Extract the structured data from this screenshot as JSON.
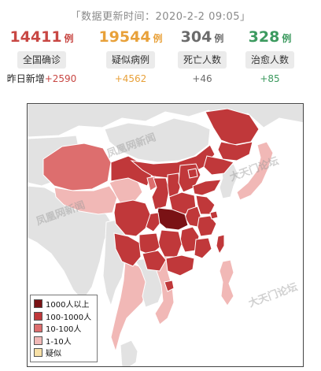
{
  "update": {
    "text": "「数据更新时间：2020-2-2 09:05」"
  },
  "stats": [
    {
      "number": "14411",
      "unit": "例",
      "label": "全国确诊",
      "delta_label": "昨日新增",
      "delta": "+2590",
      "color": "#c84743"
    },
    {
      "number": "19544",
      "unit": "例",
      "label": "疑似病例",
      "delta_label": "",
      "delta": "+4562",
      "color": "#e8a13a"
    },
    {
      "number": "304",
      "unit": "例",
      "label": "死亡人数",
      "delta_label": "",
      "delta": "+46",
      "color": "#6b6b6b"
    },
    {
      "number": "328",
      "unit": "例",
      "label": "治愈人数",
      "delta_label": "",
      "delta": "+85",
      "color": "#3c9a5f"
    }
  ],
  "legend": [
    {
      "label": "1000人以上",
      "color": "#7a1215"
    },
    {
      "label": "100-1000人",
      "color": "#c0383a"
    },
    {
      "label": "10-100人",
      "color": "#dd6e6e"
    },
    {
      "label": "1-10人",
      "color": "#f1b8b6"
    },
    {
      "label": "疑似",
      "color": "#f7e0a6"
    }
  ],
  "watermarks": {
    "brand_a": "大天门论坛",
    "brand_b": "凤凰网新闻"
  },
  "colors": {
    "level_1000_plus": "#7a1215",
    "level_100_1000": "#c0383a",
    "level_10_100": "#dd6e6e",
    "level_1_10": "#f1b8b6",
    "suspected": "#f7e0a6",
    "land_other": "#e2e2e2",
    "water": "#ffffff"
  }
}
